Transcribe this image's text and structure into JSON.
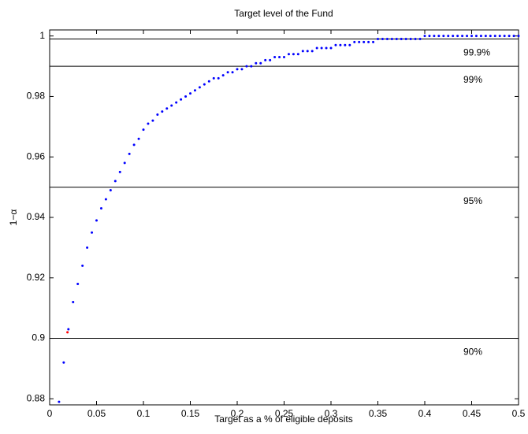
{
  "chart_data": {
    "type": "scatter",
    "title": "Target level of the Fund",
    "xlabel": "Target as a % of eligible deposits",
    "ylabel": "1−α",
    "xlim": [
      0,
      0.5
    ],
    "ylim": [
      0.878,
      1.002
    ],
    "xticks": [
      0,
      0.05,
      0.1,
      0.15,
      0.2,
      0.25,
      0.3,
      0.35,
      0.4,
      0.45,
      0.5
    ],
    "yticks": [
      0.88,
      0.9,
      0.92,
      0.94,
      0.96,
      0.98,
      1
    ],
    "reference_lines": [
      {
        "value": 0.999,
        "label": "99.9%"
      },
      {
        "value": 0.99,
        "label": "99%"
      },
      {
        "value": 0.95,
        "label": "95%"
      },
      {
        "value": 0.9,
        "label": "90%"
      }
    ],
    "series": [
      {
        "color": "#0000ff",
        "x": [
          0.01,
          0.015,
          0.02,
          0.025,
          0.03,
          0.035,
          0.04,
          0.045,
          0.05,
          0.055,
          0.06,
          0.065,
          0.07,
          0.075,
          0.08,
          0.085,
          0.09,
          0.095,
          0.1,
          0.105,
          0.11,
          0.115,
          0.12,
          0.125,
          0.13,
          0.135,
          0.14,
          0.145,
          0.15,
          0.155,
          0.16,
          0.165,
          0.17,
          0.175,
          0.18,
          0.185,
          0.19,
          0.195,
          0.2,
          0.205,
          0.21,
          0.215,
          0.22,
          0.225,
          0.23,
          0.235,
          0.24,
          0.245,
          0.25,
          0.255,
          0.26,
          0.265,
          0.27,
          0.275,
          0.28,
          0.285,
          0.29,
          0.295,
          0.3,
          0.305,
          0.31,
          0.315,
          0.32,
          0.325,
          0.33,
          0.335,
          0.34,
          0.345,
          0.35,
          0.355,
          0.36,
          0.365,
          0.37,
          0.375,
          0.38,
          0.385,
          0.39,
          0.395,
          0.4,
          0.405,
          0.41,
          0.415,
          0.42,
          0.425,
          0.43,
          0.435,
          0.44,
          0.445,
          0.45,
          0.455,
          0.46,
          0.465,
          0.47,
          0.475,
          0.48,
          0.485,
          0.49,
          0.495,
          0.5
        ],
        "values": [
          0.879,
          0.892,
          0.903,
          0.912,
          0.918,
          0.924,
          0.93,
          0.935,
          0.939,
          0.943,
          0.946,
          0.949,
          0.952,
          0.955,
          0.958,
          0.961,
          0.964,
          0.966,
          0.969,
          0.971,
          0.972,
          0.974,
          0.975,
          0.976,
          0.977,
          0.978,
          0.979,
          0.98,
          0.981,
          0.982,
          0.983,
          0.984,
          0.985,
          0.986,
          0.986,
          0.987,
          0.988,
          0.988,
          0.989,
          0.989,
          0.99,
          0.99,
          0.991,
          0.991,
          0.992,
          0.992,
          0.993,
          0.993,
          0.993,
          0.994,
          0.994,
          0.994,
          0.995,
          0.995,
          0.995,
          0.996,
          0.996,
          0.996,
          0.996,
          0.997,
          0.997,
          0.997,
          0.997,
          0.998,
          0.998,
          0.998,
          0.998,
          0.998,
          0.999,
          0.999,
          0.999,
          0.999,
          0.999,
          0.999,
          0.999,
          0.999,
          0.999,
          0.999,
          1,
          1,
          1,
          1,
          1,
          1,
          1,
          1,
          1,
          1,
          1,
          1,
          1,
          1,
          1,
          1,
          1,
          1,
          1,
          1,
          1
        ]
      },
      {
        "color": "#ff0000",
        "x": [
          0.019
        ],
        "values": [
          0.902
        ]
      }
    ]
  }
}
